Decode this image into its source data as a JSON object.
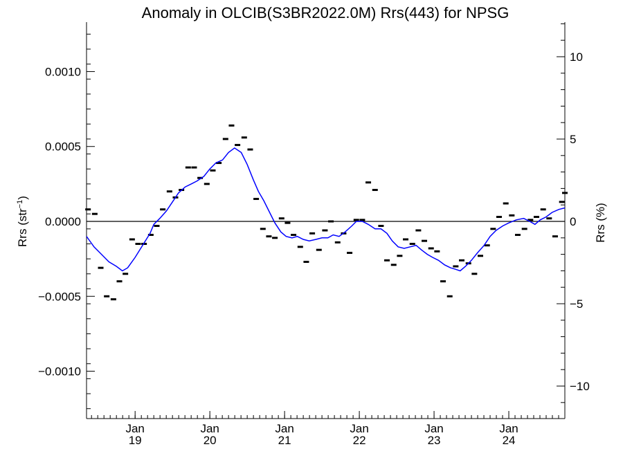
{
  "chart_data": {
    "type": "line",
    "title": "Anomaly in OLCIB(S3BR2022.0M) Rrs(443) for NPSG",
    "ylabel_left": {
      "main": "Rrs (str",
      "sup": "−1",
      "close": ")"
    },
    "ylabel_right": "Rrs (%)",
    "xlabel": "",
    "y_left_ticks": [
      {
        "value": 0.001,
        "label": "0.0010"
      },
      {
        "value": 0.0005,
        "label": "0.0005"
      },
      {
        "value": 0.0,
        "label": "0.0000"
      },
      {
        "value": -0.0005,
        "label": "−0.0005"
      },
      {
        "value": -0.001,
        "label": "−0.0010"
      }
    ],
    "y_right_ticks": [
      {
        "value": 10,
        "label": "10"
      },
      {
        "value": 5,
        "label": "5"
      },
      {
        "value": 0,
        "label": "0"
      },
      {
        "value": -5,
        "label": "−5"
      },
      {
        "value": -10,
        "label": "−10"
      }
    ],
    "ylim_left": [
      -0.00133,
      0.00133
    ],
    "ylim_right": [
      -12.1,
      12.1
    ],
    "xlim": [
      2018.35,
      2024.75
    ],
    "x_ticks": [
      {
        "value": 2019.0,
        "month": "Jan",
        "year": "19"
      },
      {
        "value": 2020.0,
        "month": "Jan",
        "year": "20"
      },
      {
        "value": 2021.0,
        "month": "Jan",
        "year": "21"
      },
      {
        "value": 2022.0,
        "month": "Jan",
        "year": "22"
      },
      {
        "value": 2023.0,
        "month": "Jan",
        "year": "23"
      },
      {
        "value": 2024.0,
        "month": "Jan",
        "year": "24"
      }
    ],
    "reference_line": 0.0,
    "series": [
      {
        "kind": "monthly_anomaly",
        "color": "#000000",
        "points": [
          [
            2018.37,
            8e-05
          ],
          [
            2018.46,
            5e-05
          ],
          [
            2018.54,
            -0.00031
          ],
          [
            2018.62,
            -0.0005
          ],
          [
            2018.71,
            -0.00052
          ],
          [
            2018.79,
            -0.0004
          ],
          [
            2018.87,
            -0.00035
          ],
          [
            2018.96,
            -0.00012
          ],
          [
            2019.04,
            -0.00015
          ],
          [
            2019.12,
            -0.00015
          ],
          [
            2019.21,
            -9e-05
          ],
          [
            2019.29,
            -3e-05
          ],
          [
            2019.37,
            8e-05
          ],
          [
            2019.46,
            0.0002
          ],
          [
            2019.54,
            0.00016
          ],
          [
            2019.62,
            0.00021
          ],
          [
            2019.71,
            0.00036
          ],
          [
            2019.79,
            0.00036
          ],
          [
            2019.87,
            0.00029
          ],
          [
            2019.96,
            0.00025
          ],
          [
            2020.04,
            0.00034
          ],
          [
            2020.12,
            0.00039
          ],
          [
            2020.21,
            0.00055
          ],
          [
            2020.29,
            0.00064
          ],
          [
            2020.37,
            0.00051
          ],
          [
            2020.46,
            0.00056
          ],
          [
            2020.54,
            0.00048
          ],
          [
            2020.62,
            0.00015
          ],
          [
            2020.71,
            -5e-05
          ],
          [
            2020.79,
            -0.0001
          ],
          [
            2020.87,
            -0.00011
          ],
          [
            2020.96,
            2e-05
          ],
          [
            2021.04,
            -1e-05
          ],
          [
            2021.12,
            -9e-05
          ],
          [
            2021.21,
            -0.00017
          ],
          [
            2021.29,
            -0.00027
          ],
          [
            2021.37,
            -8e-05
          ],
          [
            2021.46,
            -0.00019
          ],
          [
            2021.54,
            -6e-05
          ],
          [
            2021.62,
            0.0
          ],
          [
            2021.71,
            -0.00014
          ],
          [
            2021.79,
            -8e-05
          ],
          [
            2021.87,
            -0.00021
          ],
          [
            2021.96,
            1e-05
          ],
          [
            2022.04,
            1e-05
          ],
          [
            2022.12,
            0.00026
          ],
          [
            2022.21,
            0.00021
          ],
          [
            2022.29,
            -3e-05
          ],
          [
            2022.37,
            -0.00026
          ],
          [
            2022.46,
            -0.00029
          ],
          [
            2022.54,
            -0.00023
          ],
          [
            2022.62,
            -0.00012
          ],
          [
            2022.71,
            -0.00015
          ],
          [
            2022.79,
            -6e-05
          ],
          [
            2022.87,
            -0.00013
          ],
          [
            2022.96,
            -0.00018
          ],
          [
            2023.04,
            -0.0002
          ],
          [
            2023.12,
            -0.0004
          ],
          [
            2023.21,
            -0.0005
          ],
          [
            2023.29,
            -0.0003
          ],
          [
            2023.37,
            -0.00026
          ],
          [
            2023.46,
            -0.00028
          ],
          [
            2023.54,
            -0.00035
          ],
          [
            2023.62,
            -0.00023
          ],
          [
            2023.71,
            -0.00016
          ],
          [
            2023.79,
            -5e-05
          ],
          [
            2023.87,
            3e-05
          ],
          [
            2023.96,
            0.00012
          ],
          [
            2024.04,
            4e-05
          ],
          [
            2024.12,
            -9e-05
          ],
          [
            2024.21,
            -5e-05
          ],
          [
            2024.29,
            1e-05
          ],
          [
            2024.37,
            3e-05
          ],
          [
            2024.46,
            8e-05
          ],
          [
            2024.54,
            2e-05
          ],
          [
            2024.62,
            -0.0001
          ],
          [
            2024.71,
            0.00013
          ],
          [
            2024.75,
            0.00019
          ]
        ]
      },
      {
        "kind": "running_mean",
        "color": "#0000ff",
        "points": [
          [
            2018.35,
            -0.0001
          ],
          [
            2018.45,
            -0.00017
          ],
          [
            2018.55,
            -0.00022
          ],
          [
            2018.65,
            -0.00027
          ],
          [
            2018.75,
            -0.0003
          ],
          [
            2018.83,
            -0.00033
          ],
          [
            2018.9,
            -0.00031
          ],
          [
            2019.0,
            -0.00024
          ],
          [
            2019.1,
            -0.00016
          ],
          [
            2019.2,
            -8e-05
          ],
          [
            2019.25,
            -2e-05
          ],
          [
            2019.33,
            2e-05
          ],
          [
            2019.42,
            7e-05
          ],
          [
            2019.5,
            0.00013
          ],
          [
            2019.58,
            0.00019
          ],
          [
            2019.67,
            0.00023
          ],
          [
            2019.75,
            0.00025
          ],
          [
            2019.83,
            0.00027
          ],
          [
            2019.92,
            0.0003
          ],
          [
            2020.0,
            0.00035
          ],
          [
            2020.08,
            0.00039
          ],
          [
            2020.17,
            0.00041
          ],
          [
            2020.25,
            0.00046
          ],
          [
            2020.33,
            0.00049
          ],
          [
            2020.42,
            0.00046
          ],
          [
            2020.5,
            0.00038
          ],
          [
            2020.58,
            0.00028
          ],
          [
            2020.65,
            0.0002
          ],
          [
            2020.72,
            0.00014
          ],
          [
            2020.8,
            6e-05
          ],
          [
            2020.87,
            -1e-05
          ],
          [
            2020.95,
            -7e-05
          ],
          [
            2021.02,
            -0.0001
          ],
          [
            2021.1,
            -0.00011
          ],
          [
            2021.17,
            -0.0001
          ],
          [
            2021.25,
            -0.00012
          ],
          [
            2021.33,
            -0.00013
          ],
          [
            2021.42,
            -0.00012
          ],
          [
            2021.5,
            -0.00011
          ],
          [
            2021.58,
            -0.00011
          ],
          [
            2021.65,
            -9e-05
          ],
          [
            2021.73,
            -0.0001
          ],
          [
            2021.81,
            -7e-05
          ],
          [
            2021.9,
            -3e-05
          ],
          [
            2021.96,
            0.0
          ],
          [
            2022.04,
            0.0
          ],
          [
            2022.12,
            -2e-05
          ],
          [
            2022.21,
            -5e-05
          ],
          [
            2022.29,
            -5e-05
          ],
          [
            2022.37,
            -8e-05
          ],
          [
            2022.44,
            -0.00013
          ],
          [
            2022.52,
            -0.00017
          ],
          [
            2022.6,
            -0.00018
          ],
          [
            2022.68,
            -0.00017
          ],
          [
            2022.76,
            -0.00016
          ],
          [
            2022.83,
            -0.00019
          ],
          [
            2022.91,
            -0.00022
          ],
          [
            2022.98,
            -0.00024
          ],
          [
            2023.06,
            -0.00026
          ],
          [
            2023.14,
            -0.00029
          ],
          [
            2023.22,
            -0.00031
          ],
          [
            2023.29,
            -0.00032
          ],
          [
            2023.35,
            -0.00033
          ],
          [
            2023.42,
            -0.0003
          ],
          [
            2023.5,
            -0.00026
          ],
          [
            2023.58,
            -0.00021
          ],
          [
            2023.67,
            -0.00016
          ],
          [
            2023.75,
            -0.0001
          ],
          [
            2023.83,
            -6e-05
          ],
          [
            2023.92,
            -3e-05
          ],
          [
            2024.0,
            -1e-05
          ],
          [
            2024.1,
            1e-05
          ],
          [
            2024.2,
            2e-05
          ],
          [
            2024.28,
            0.0
          ],
          [
            2024.35,
            -2e-05
          ],
          [
            2024.42,
            1e-05
          ],
          [
            2024.5,
            3e-05
          ],
          [
            2024.58,
            6e-05
          ],
          [
            2024.67,
            8e-05
          ],
          [
            2024.75,
            9e-05
          ]
        ]
      }
    ]
  }
}
